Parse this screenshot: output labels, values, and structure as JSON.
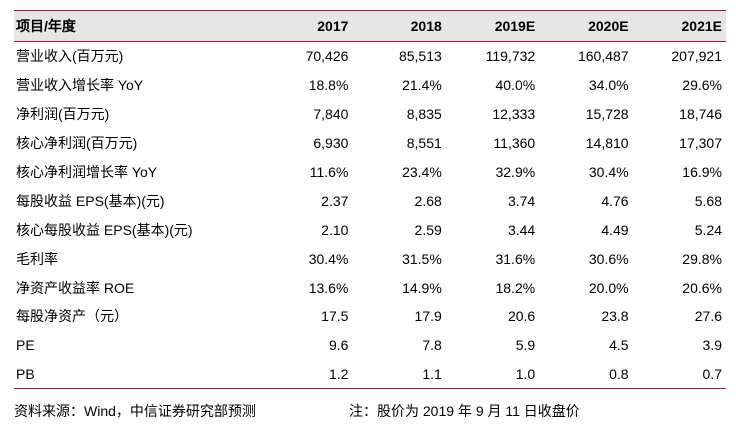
{
  "table": {
    "headers": [
      "项目/年度",
      "2017",
      "2018",
      "2019E",
      "2020E",
      "2021E"
    ],
    "rows": [
      {
        "label": "营业收入(百万元)",
        "values": [
          "70,426",
          "85,513",
          "119,732",
          "160,487",
          "207,921"
        ]
      },
      {
        "label": "营业收入增长率 YoY",
        "values": [
          "18.8%",
          "21.4%",
          "40.0%",
          "34.0%",
          "29.6%"
        ]
      },
      {
        "label": "净利润(百万元)",
        "values": [
          "7,840",
          "8,835",
          "12,333",
          "15,728",
          "18,746"
        ]
      },
      {
        "label": "核心净利润(百万元)",
        "values": [
          "6,930",
          "8,551",
          "11,360",
          "14,810",
          "17,307"
        ]
      },
      {
        "label": "核心净利润增长率 YoY",
        "values": [
          "11.6%",
          "23.4%",
          "32.9%",
          "30.4%",
          "16.9%"
        ]
      },
      {
        "label": "每股收益 EPS(基本)(元)",
        "values": [
          "2.37",
          "2.68",
          "3.74",
          "4.76",
          "5.68"
        ]
      },
      {
        "label": "核心每股收益 EPS(基本)(元)",
        "values": [
          "2.10",
          "2.59",
          "3.44",
          "4.49",
          "5.24"
        ]
      },
      {
        "label": "毛利率",
        "values": [
          "30.4%",
          "31.5%",
          "31.6%",
          "30.6%",
          "29.8%"
        ]
      },
      {
        "label": "净资产收益率 ROE",
        "values": [
          "13.6%",
          "14.9%",
          "18.2%",
          "20.0%",
          "20.6%"
        ]
      },
      {
        "label": "每股净资产（元）",
        "values": [
          "17.5",
          "17.9",
          "20.6",
          "23.8",
          "27.6"
        ]
      },
      {
        "label": "PE",
        "values": [
          "9.6",
          "7.8",
          "5.9",
          "4.5",
          "3.9"
        ]
      },
      {
        "label": "PB",
        "values": [
          "1.2",
          "1.1",
          "1.0",
          "0.8",
          "0.7"
        ]
      }
    ]
  },
  "footer": {
    "source": "资料来源：Wind，中信证券研究部预测",
    "note": "注：股价为 2019 年 9 月 11 日收盘价"
  },
  "colors": {
    "rule": "#c8102e",
    "header_bg": "#e6e6e6"
  }
}
